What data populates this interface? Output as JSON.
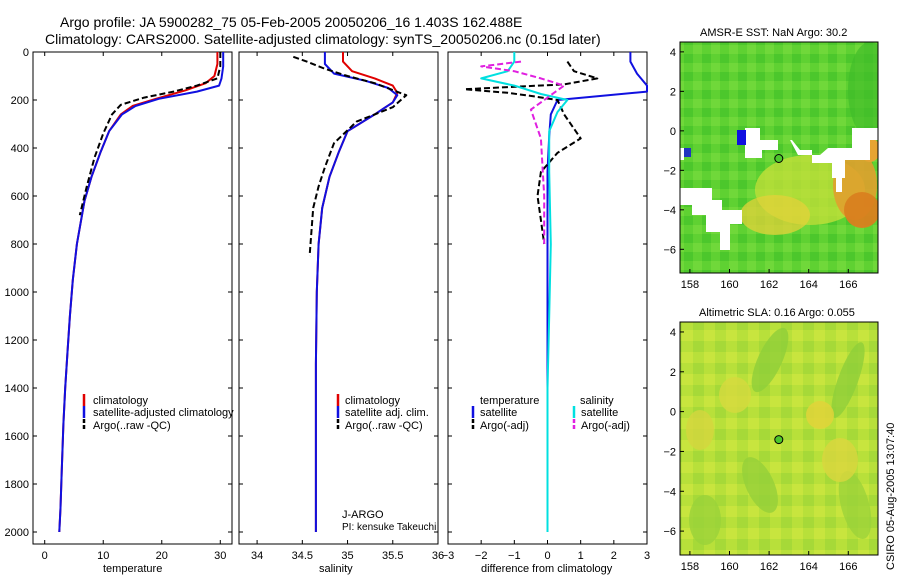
{
  "header": {
    "line1": "Argo profile: JA 5900282_75 05-Feb-2005 20050206_16 1.403S 162.488E",
    "line2": "Climatology: CARS2000. Satellite-adjusted climatology: synTS_20050206.nc (0.15d later)"
  },
  "colors": {
    "climatology": "#e00000",
    "satellite": "#1010e0",
    "argo": "#000000",
    "sal_satellite": "#00e0e0",
    "sal_argo": "#e020e0"
  },
  "footer": {
    "credit": "CSIRO 05-Aug-2005 13:07:40"
  },
  "chart_data": [
    {
      "id": "temperature",
      "type": "line",
      "xlabel": "temperature",
      "xlim": [
        -2,
        32
      ],
      "ylim": [
        0,
        2050
      ],
      "y_reversed": true,
      "xticks": [
        0,
        10,
        20,
        30
      ],
      "yticks": [
        0,
        200,
        400,
        600,
        800,
        1000,
        1200,
        1400,
        1600,
        1800,
        2000
      ],
      "legend": {
        "position": "lower-right",
        "items": [
          "climatology",
          "satellite-adjusted climatology",
          "Argo(..raw -QC)"
        ]
      },
      "series": [
        {
          "name": "climatology",
          "color": "#e00000",
          "dashed": false,
          "x": [
            29.5,
            29.5,
            29.0,
            27.5,
            24.0,
            19.0,
            15.0,
            13.0,
            11.0,
            9.5,
            8.0,
            6.8,
            5.5,
            4.8,
            4.3,
            3.9,
            3.5,
            3.2,
            2.9,
            2.7,
            2.5
          ],
          "y": [
            0,
            50,
            100,
            130,
            160,
            195,
            225,
            260,
            330,
            420,
            520,
            620,
            800,
            950,
            1100,
            1250,
            1400,
            1550,
            1750,
            1900,
            2000
          ]
        },
        {
          "name": "satellite-adjusted climatology",
          "color": "#1010e0",
          "dashed": false,
          "x": [
            30.5,
            30.5,
            30.2,
            29.8,
            26.0,
            19.5,
            15.5,
            13.2,
            11.0,
            9.5,
            8.0,
            6.8,
            5.5,
            4.8,
            4.3,
            3.9,
            3.5,
            3.2,
            2.9,
            2.7,
            2.5
          ],
          "y": [
            0,
            60,
            110,
            140,
            165,
            195,
            225,
            260,
            330,
            420,
            520,
            620,
            800,
            950,
            1100,
            1250,
            1400,
            1550,
            1750,
            1900,
            2000
          ]
        },
        {
          "name": "Argo(..raw -QC)",
          "color": "#000000",
          "dashed": true,
          "x": [
            30.0,
            30.0,
            29.5,
            26.0,
            22.0,
            17.0,
            13.0,
            11.5,
            10.0,
            8.5,
            7.2,
            6.0
          ],
          "y": [
            0,
            60,
            110,
            140,
            165,
            190,
            220,
            260,
            340,
            440,
            560,
            680
          ]
        }
      ]
    },
    {
      "id": "salinity",
      "type": "line",
      "xlabel": "salinity",
      "xlim": [
        33.8,
        36.0
      ],
      "ylim": [
        0,
        2050
      ],
      "y_reversed": true,
      "xticks": [
        34,
        34.5,
        35,
        35.5,
        36
      ],
      "xticklabels": [
        "34",
        "34.5",
        "35",
        "35.5",
        "36"
      ],
      "legend": {
        "position": "lower-right",
        "items": [
          "climatology",
          "satellite adj. clim.",
          "Argo(..raw -QC)"
        ]
      },
      "annotation": [
        "J-ARGO",
        "PI: kensuke Takeuchi"
      ],
      "series": [
        {
          "name": "climatology",
          "color": "#e00000",
          "dashed": false,
          "x": [
            34.95,
            34.95,
            35.05,
            35.3,
            35.5,
            35.55,
            35.5,
            35.3,
            35.0,
            34.9,
            34.8,
            34.72,
            34.68,
            34.66,
            34.65,
            34.65,
            34.65,
            34.65
          ],
          "y": [
            0,
            40,
            80,
            110,
            140,
            170,
            210,
            260,
            330,
            420,
            520,
            650,
            800,
            1000,
            1300,
            1600,
            1800,
            2000
          ]
        },
        {
          "name": "satellite adj. clim.",
          "color": "#1010e0",
          "dashed": false,
          "x": [
            34.75,
            34.75,
            34.85,
            35.2,
            35.45,
            35.55,
            35.5,
            35.3,
            35.0,
            34.9,
            34.8,
            34.72,
            34.68,
            34.66,
            34.65,
            34.65,
            34.65,
            34.65
          ],
          "y": [
            0,
            50,
            90,
            120,
            150,
            180,
            210,
            260,
            330,
            420,
            520,
            650,
            800,
            1000,
            1300,
            1600,
            1800,
            2000
          ]
        },
        {
          "name": "Argo(..raw -QC)",
          "color": "#000000",
          "dashed": true,
          "x": [
            34.4,
            34.55,
            34.75,
            35.0,
            35.3,
            35.65,
            35.5,
            35.1,
            34.85,
            34.75,
            34.68,
            34.62,
            34.6,
            34.58
          ],
          "y": [
            20,
            40,
            70,
            100,
            130,
            180,
            230,
            290,
            380,
            480,
            560,
            650,
            750,
            850
          ]
        }
      ]
    },
    {
      "id": "difference",
      "type": "line",
      "xlabel": "difference from climatology",
      "xlim": [
        -3,
        3
      ],
      "ylim": [
        0,
        2050
      ],
      "y_reversed": true,
      "xticks": [
        -3,
        -2,
        -1,
        0,
        1,
        2,
        3
      ],
      "legend": {
        "position": "lower",
        "items": [
          "temperature",
          "satellite",
          "Argo(-adj)",
          "salinity",
          "satellite",
          "Argo(-adj)"
        ]
      },
      "series": [
        {
          "name": "temperature satellite",
          "color": "#1010e0",
          "dashed": false,
          "x": [
            2.5,
            2.5,
            2.7,
            3.0,
            3.0,
            0.3,
            0.1,
            0.05,
            0,
            0,
            0,
            0,
            0,
            0
          ],
          "y": [
            0,
            40,
            90,
            140,
            165,
            200,
            260,
            350,
            500,
            800,
            1100,
            1400,
            1700,
            2000
          ]
        },
        {
          "name": "temperature Argo(-adj)",
          "color": "#000000",
          "dashed": true,
          "x": [
            0.6,
            0.8,
            1.5,
            0.5,
            -2.5,
            -1.2,
            -0.4,
            0.3,
            0.5,
            1.0,
            0.3,
            -0.2,
            -0.3,
            -0.2,
            -0.1
          ],
          "y": [
            40,
            80,
            110,
            135,
            155,
            170,
            185,
            200,
            260,
            360,
            420,
            500,
            600,
            700,
            800
          ]
        },
        {
          "name": "salinity satellite",
          "color": "#00e0e0",
          "dashed": false,
          "x": [
            -1.0,
            -1.0,
            -1.2,
            -2.0,
            -1.0,
            -0.2,
            0.6,
            0.3,
            0.05,
            0.05,
            0.1,
            0.05,
            0,
            0,
            0,
            0
          ],
          "y": [
            0,
            40,
            80,
            110,
            140,
            175,
            200,
            250,
            330,
            500,
            800,
            1100,
            1400,
            1600,
            1800,
            2000
          ]
        },
        {
          "name": "salinity Argo(-adj)",
          "color": "#e020e0",
          "dashed": true,
          "x": [
            -0.8,
            -2.0,
            -1.0,
            -0.2,
            0.5,
            0.1,
            -0.5,
            -0.2,
            -0.1,
            -0.1
          ],
          "y": [
            40,
            60,
            80,
            110,
            140,
            180,
            240,
            360,
            600,
            800
          ]
        }
      ]
    },
    {
      "id": "sst-map",
      "type": "heatmap",
      "title": "AMSR-E SST: NaN Argo: 30.2",
      "xlim": [
        157.5,
        167.5
      ],
      "ylim": [
        -7.2,
        4.5
      ],
      "xticks": [
        158,
        160,
        162,
        164,
        166
      ],
      "yticks": [
        4,
        2,
        0,
        -2,
        -4,
        -6
      ],
      "marker": {
        "lon": 162.488,
        "lat": -1.403
      }
    },
    {
      "id": "sla-map",
      "type": "heatmap",
      "title": "Altimetric SLA: 0.16 Argo: 0.055",
      "xlim": [
        157.5,
        167.5
      ],
      "ylim": [
        -7.2,
        4.5
      ],
      "xticks": [
        158,
        160,
        162,
        164,
        166
      ],
      "yticks": [
        4,
        2,
        0,
        -2,
        -4,
        -6
      ],
      "marker": {
        "lon": 162.488,
        "lat": -1.403
      }
    }
  ]
}
